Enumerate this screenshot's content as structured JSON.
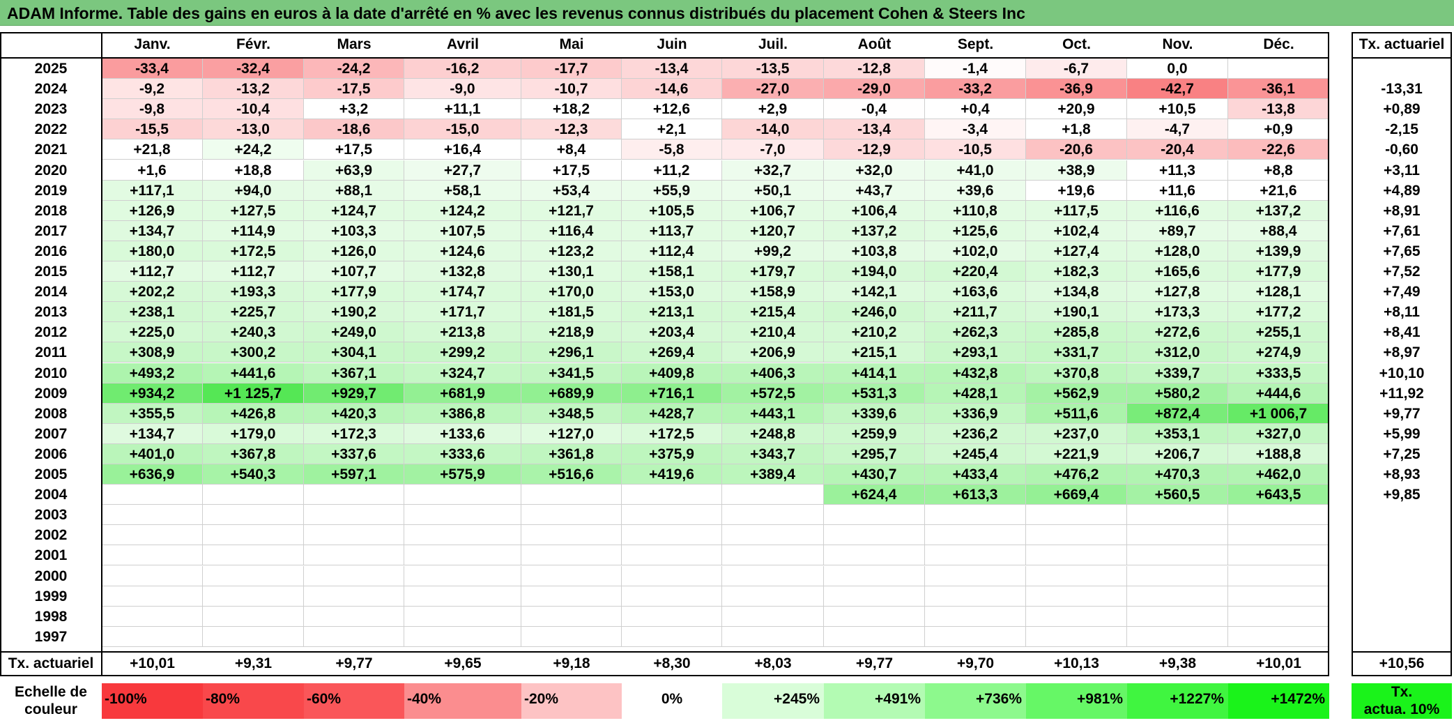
{
  "title": "ADAM Informe. Table des gains en euros à la date d'arrêté en % avec les revenus connus distribués du placement Cohen & Steers Inc",
  "months": [
    "Janv.",
    "Févr.",
    "Mars",
    "Avril",
    "Mai",
    "Juin",
    "Juil.",
    "Août",
    "Sept.",
    "Oct.",
    "Nov.",
    "Déc."
  ],
  "ta_header": "Tx. actuariel",
  "rows": [
    {
      "year": "2025",
      "values": [
        "-33,4",
        "-32,4",
        "-24,2",
        "-16,2",
        "-17,7",
        "-13,4",
        "-13,5",
        "-12,8",
        "-1,4",
        "-6,7",
        "0,0",
        ""
      ],
      "ta": ""
    },
    {
      "year": "2024",
      "values": [
        "-9,2",
        "-13,2",
        "-17,5",
        "-9,0",
        "-10,7",
        "-14,6",
        "-27,0",
        "-29,0",
        "-33,2",
        "-36,9",
        "-42,7",
        "-36,1"
      ],
      "ta": "-13,31"
    },
    {
      "year": "2023",
      "values": [
        "-9,8",
        "-10,4",
        "+3,2",
        "+11,1",
        "+18,2",
        "+12,6",
        "+2,9",
        "-0,4",
        "+0,4",
        "+20,9",
        "+10,5",
        "-13,8"
      ],
      "ta": "+0,89"
    },
    {
      "year": "2022",
      "values": [
        "-15,5",
        "-13,0",
        "-18,6",
        "-15,0",
        "-12,3",
        "+2,1",
        "-14,0",
        "-13,4",
        "-3,4",
        "+1,8",
        "-4,7",
        "+0,9"
      ],
      "ta": "-2,15"
    },
    {
      "year": "2021",
      "values": [
        "+21,8",
        "+24,2",
        "+17,5",
        "+16,4",
        "+8,4",
        "-5,8",
        "-7,0",
        "-12,9",
        "-10,5",
        "-20,6",
        "-20,4",
        "-22,6"
      ],
      "ta": "-0,60"
    },
    {
      "year": "2020",
      "values": [
        "+1,6",
        "+18,8",
        "+63,9",
        "+27,7",
        "+17,5",
        "+11,2",
        "+32,7",
        "+32,0",
        "+41,0",
        "+38,9",
        "+11,3",
        "+8,8"
      ],
      "ta": "+3,11"
    },
    {
      "year": "2019",
      "values": [
        "+117,1",
        "+94,0",
        "+88,1",
        "+58,1",
        "+53,4",
        "+55,9",
        "+50,1",
        "+43,7",
        "+39,6",
        "+19,6",
        "+11,6",
        "+21,6"
      ],
      "ta": "+4,89"
    },
    {
      "year": "2018",
      "values": [
        "+126,9",
        "+127,5",
        "+124,7",
        "+124,2",
        "+121,7",
        "+105,5",
        "+106,7",
        "+106,4",
        "+110,8",
        "+117,5",
        "+116,6",
        "+137,2"
      ],
      "ta": "+8,91"
    },
    {
      "year": "2017",
      "values": [
        "+134,7",
        "+114,9",
        "+103,3",
        "+107,5",
        "+116,4",
        "+113,7",
        "+120,7",
        "+137,2",
        "+125,6",
        "+102,4",
        "+89,7",
        "+88,4"
      ],
      "ta": "+7,61"
    },
    {
      "year": "2016",
      "values": [
        "+180,0",
        "+172,5",
        "+126,0",
        "+124,6",
        "+123,2",
        "+112,4",
        "+99,2",
        "+103,8",
        "+102,0",
        "+127,4",
        "+128,0",
        "+139,9"
      ],
      "ta": "+7,65"
    },
    {
      "year": "2015",
      "values": [
        "+112,7",
        "+112,7",
        "+107,7",
        "+132,8",
        "+130,1",
        "+158,1",
        "+179,7",
        "+194,0",
        "+220,4",
        "+182,3",
        "+165,6",
        "+177,9"
      ],
      "ta": "+7,52"
    },
    {
      "year": "2014",
      "values": [
        "+202,2",
        "+193,3",
        "+177,9",
        "+174,7",
        "+170,0",
        "+153,0",
        "+158,9",
        "+142,1",
        "+163,6",
        "+134,8",
        "+127,8",
        "+128,1"
      ],
      "ta": "+7,49"
    },
    {
      "year": "2013",
      "values": [
        "+238,1",
        "+225,7",
        "+190,2",
        "+171,7",
        "+181,5",
        "+213,1",
        "+215,4",
        "+246,0",
        "+211,7",
        "+190,1",
        "+173,3",
        "+177,2"
      ],
      "ta": "+8,11"
    },
    {
      "year": "2012",
      "values": [
        "+225,0",
        "+240,3",
        "+249,0",
        "+213,8",
        "+218,9",
        "+203,4",
        "+210,4",
        "+210,2",
        "+262,3",
        "+285,8",
        "+272,6",
        "+255,1"
      ],
      "ta": "+8,41"
    },
    {
      "year": "2011",
      "values": [
        "+308,9",
        "+300,2",
        "+304,1",
        "+299,2",
        "+296,1",
        "+269,4",
        "+206,9",
        "+215,1",
        "+293,1",
        "+331,7",
        "+312,0",
        "+274,9"
      ],
      "ta": "+8,97"
    },
    {
      "year": "2010",
      "values": [
        "+493,2",
        "+441,6",
        "+367,1",
        "+324,7",
        "+341,5",
        "+409,8",
        "+406,3",
        "+414,1",
        "+432,8",
        "+370,8",
        "+339,7",
        "+333,5"
      ],
      "ta": "+10,10"
    },
    {
      "year": "2009",
      "values": [
        "+934,2",
        "+1 125,7",
        "+929,7",
        "+681,9",
        "+689,9",
        "+716,1",
        "+572,5",
        "+531,3",
        "+428,1",
        "+562,9",
        "+580,2",
        "+444,6"
      ],
      "ta": "+11,92"
    },
    {
      "year": "2008",
      "values": [
        "+355,5",
        "+426,8",
        "+420,3",
        "+386,8",
        "+348,5",
        "+428,7",
        "+443,1",
        "+339,6",
        "+336,9",
        "+511,6",
        "+872,4",
        "+1 006,7"
      ],
      "ta": "+9,77"
    },
    {
      "year": "2007",
      "values": [
        "+134,7",
        "+179,0",
        "+172,3",
        "+133,6",
        "+127,0",
        "+172,5",
        "+248,8",
        "+259,9",
        "+236,2",
        "+237,0",
        "+353,1",
        "+327,0"
      ],
      "ta": "+5,99"
    },
    {
      "year": "2006",
      "values": [
        "+401,0",
        "+367,8",
        "+337,6",
        "+333,6",
        "+361,8",
        "+375,9",
        "+343,7",
        "+295,7",
        "+245,4",
        "+221,9",
        "+206,7",
        "+188,8"
      ],
      "ta": "+7,25"
    },
    {
      "year": "2005",
      "values": [
        "+636,9",
        "+540,3",
        "+597,1",
        "+575,9",
        "+516,6",
        "+419,6",
        "+389,4",
        "+430,7",
        "+433,4",
        "+476,2",
        "+470,3",
        "+462,0"
      ],
      "ta": "+8,93"
    },
    {
      "year": "2004",
      "values": [
        "",
        "",
        "",
        "",
        "",
        "",
        "",
        "+624,4",
        "+613,3",
        "+669,4",
        "+560,5",
        "+643,5"
      ],
      "ta": "+9,85"
    },
    {
      "year": "2003",
      "values": [
        "",
        "",
        "",
        "",
        "",
        "",
        "",
        "",
        "",
        "",
        "",
        ""
      ],
      "ta": ""
    },
    {
      "year": "2002",
      "values": [
        "",
        "",
        "",
        "",
        "",
        "",
        "",
        "",
        "",
        "",
        "",
        ""
      ],
      "ta": ""
    },
    {
      "year": "2001",
      "values": [
        "",
        "",
        "",
        "",
        "",
        "",
        "",
        "",
        "",
        "",
        "",
        ""
      ],
      "ta": ""
    },
    {
      "year": "2000",
      "values": [
        "",
        "",
        "",
        "",
        "",
        "",
        "",
        "",
        "",
        "",
        "",
        ""
      ],
      "ta": ""
    },
    {
      "year": "1999",
      "values": [
        "",
        "",
        "",
        "",
        "",
        "",
        "",
        "",
        "",
        "",
        "",
        ""
      ],
      "ta": ""
    },
    {
      "year": "1998",
      "values": [
        "",
        "",
        "",
        "",
        "",
        "",
        "",
        "",
        "",
        "",
        "",
        ""
      ],
      "ta": ""
    },
    {
      "year": "1997",
      "values": [
        "",
        "",
        "",
        "",
        "",
        "",
        "",
        "",
        "",
        "",
        "",
        ""
      ],
      "ta": ""
    }
  ],
  "footer": {
    "label": "Tx. actuariel",
    "values": [
      "+10,01",
      "+9,31",
      "+9,77",
      "+9,65",
      "+9,18",
      "+8,30",
      "+8,03",
      "+9,77",
      "+9,70",
      "+10,13",
      "+9,38",
      "+10,01"
    ],
    "ta": "+10,56"
  },
  "scale": {
    "label_line1": "Echelle de",
    "label_line2": "couleur",
    "items": [
      {
        "label": "-100%",
        "color": "#f8393d",
        "align": "left"
      },
      {
        "label": "-80%",
        "color": "#f9484b",
        "align": "left"
      },
      {
        "label": "-60%",
        "color": "#fa5659",
        "align": "left"
      },
      {
        "label": "-40%",
        "color": "#fb8d8f",
        "align": "left"
      },
      {
        "label": "-20%",
        "color": "#fdc3c4",
        "align": "left"
      },
      {
        "label": "0%",
        "color": "#ffffff",
        "align": "center"
      },
      {
        "label": "+245%",
        "color": "#d9fdd9",
        "align": "right"
      },
      {
        "label": "+491%",
        "color": "#b3fbb3",
        "align": "right"
      },
      {
        "label": "+736%",
        "color": "#8df98d",
        "align": "right"
      },
      {
        "label": "+981%",
        "color": "#66f766",
        "align": "right"
      },
      {
        "label": "+1227%",
        "color": "#40f540",
        "align": "right"
      },
      {
        "label": "+1472%",
        "color": "#1af31a",
        "align": "right"
      }
    ],
    "ta_line1": "Tx.",
    "ta_line2": "actua. 10%",
    "ta_color": "#1af31a"
  },
  "colors": {
    "title_bar": "#7bc77f",
    "negative_max": "#f8696b",
    "positive_max": "#63be7b"
  }
}
